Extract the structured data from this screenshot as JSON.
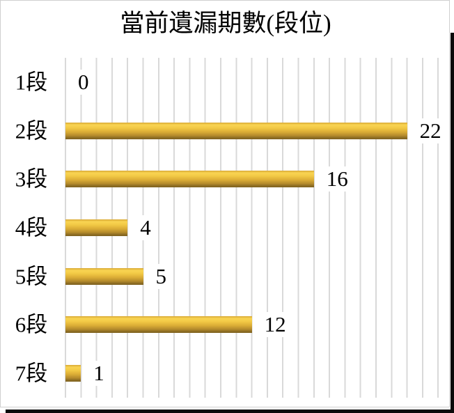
{
  "chart_data": {
    "type": "bar",
    "orientation": "horizontal",
    "title": "當前遺漏期數(段位)",
    "categories": [
      "1段",
      "2段",
      "3段",
      "4段",
      "5段",
      "6段",
      "7段"
    ],
    "values": [
      0,
      22,
      16,
      4,
      5,
      12,
      1
    ],
    "xlim": [
      0,
      24
    ],
    "grid": "vertical-lines-every-1-unit",
    "legend": "none",
    "axis_tick_labels": "none",
    "colors": {
      "bar_highlight": "#f9d452",
      "bar_base": "#e0ac36",
      "bar_shadow_edge": "#7f6322",
      "gridline": "#d9d9d9",
      "text": "#000000",
      "card_border": "#cfcfcf",
      "drop_shadow": "#0a0a0a",
      "background": "#ffffff"
    }
  }
}
